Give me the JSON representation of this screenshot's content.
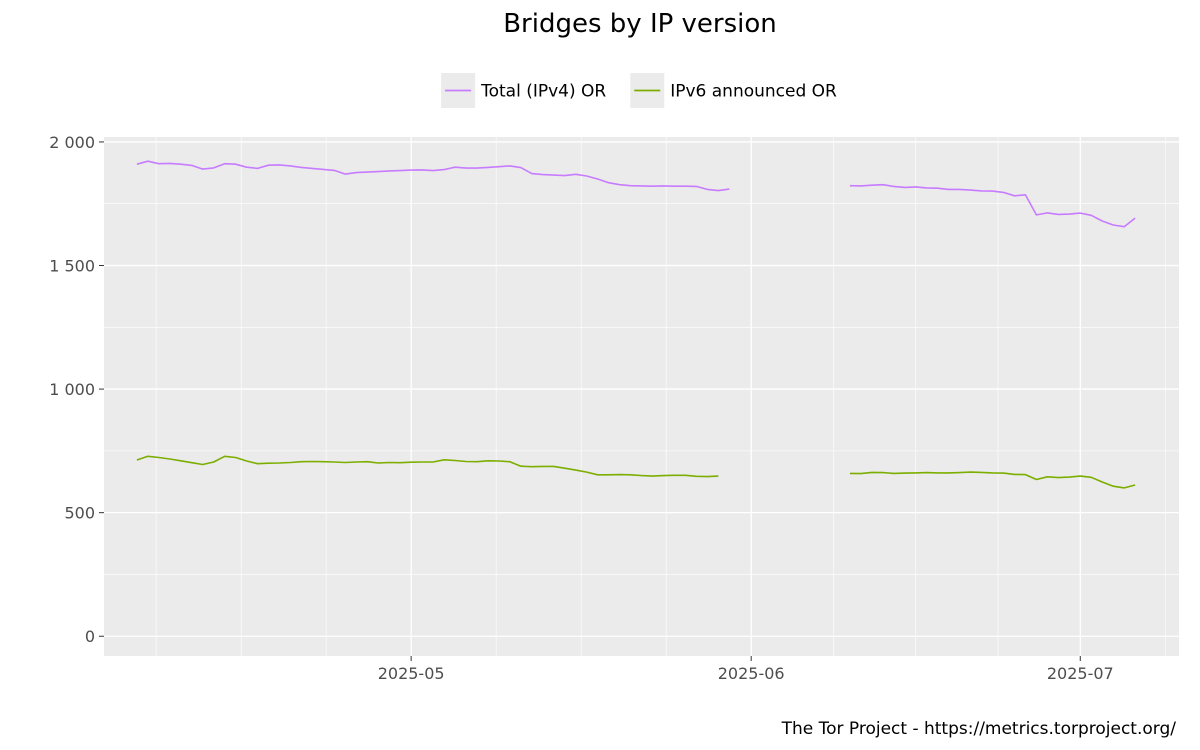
{
  "chart_data": {
    "type": "line",
    "title": "Bridges by IP version",
    "caption": "The Tor Project - https://metrics.torproject.org/",
    "xlabel": "",
    "ylabel": "",
    "ylim": [
      -80,
      2020
    ],
    "xlim": [
      "2025-04-03",
      "2025-07-10"
    ],
    "y_ticks": [
      0,
      500,
      1000,
      1500,
      2000
    ],
    "y_tick_labels": [
      "0",
      "500",
      "1 000",
      "1 500",
      "2 000"
    ],
    "x_ticks": [
      "2025-05-01",
      "2025-06-01",
      "2025-07-01"
    ],
    "x_tick_labels": [
      "2025-05",
      "2025-06",
      "2025-07"
    ],
    "grid": true,
    "legend_position": "top",
    "series": [
      {
        "name": "Total (IPv4) OR",
        "color": "#c77cff",
        "values": [
          {
            "x": "2025-04-06",
            "y": 1910
          },
          {
            "x": "2025-04-07",
            "y": 1922
          },
          {
            "x": "2025-04-08",
            "y": 1912
          },
          {
            "x": "2025-04-09",
            "y": 1913
          },
          {
            "x": "2025-04-10",
            "y": 1910
          },
          {
            "x": "2025-04-11",
            "y": 1905
          },
          {
            "x": "2025-04-12",
            "y": 1890
          },
          {
            "x": "2025-04-13",
            "y": 1895
          },
          {
            "x": "2025-04-14",
            "y": 1912
          },
          {
            "x": "2025-04-15",
            "y": 1910
          },
          {
            "x": "2025-04-16",
            "y": 1898
          },
          {
            "x": "2025-04-17",
            "y": 1893
          },
          {
            "x": "2025-04-18",
            "y": 1906
          },
          {
            "x": "2025-04-19",
            "y": 1907
          },
          {
            "x": "2025-04-20",
            "y": 1903
          },
          {
            "x": "2025-04-21",
            "y": 1897
          },
          {
            "x": "2025-04-22",
            "y": 1893
          },
          {
            "x": "2025-04-23",
            "y": 1889
          },
          {
            "x": "2025-04-24",
            "y": 1885
          },
          {
            "x": "2025-04-25",
            "y": 1870
          },
          {
            "x": "2025-04-26",
            "y": 1876
          },
          {
            "x": "2025-04-27",
            "y": 1878
          },
          {
            "x": "2025-04-28",
            "y": 1880
          },
          {
            "x": "2025-04-29",
            "y": 1883
          },
          {
            "x": "2025-04-30",
            "y": 1884
          },
          {
            "x": "2025-05-01",
            "y": 1886
          },
          {
            "x": "2025-05-02",
            "y": 1887
          },
          {
            "x": "2025-05-03",
            "y": 1884
          },
          {
            "x": "2025-05-04",
            "y": 1888
          },
          {
            "x": "2025-05-05",
            "y": 1898
          },
          {
            "x": "2025-05-06",
            "y": 1894
          },
          {
            "x": "2025-05-07",
            "y": 1894
          },
          {
            "x": "2025-05-08",
            "y": 1897
          },
          {
            "x": "2025-05-09",
            "y": 1900
          },
          {
            "x": "2025-05-10",
            "y": 1903
          },
          {
            "x": "2025-05-11",
            "y": 1896
          },
          {
            "x": "2025-05-12",
            "y": 1872
          },
          {
            "x": "2025-05-13",
            "y": 1868
          },
          {
            "x": "2025-05-14",
            "y": 1866
          },
          {
            "x": "2025-05-15",
            "y": 1864
          },
          {
            "x": "2025-05-16",
            "y": 1869
          },
          {
            "x": "2025-05-17",
            "y": 1862
          },
          {
            "x": "2025-05-18",
            "y": 1850
          },
          {
            "x": "2025-05-19",
            "y": 1835
          },
          {
            "x": "2025-05-20",
            "y": 1827
          },
          {
            "x": "2025-05-21",
            "y": 1823
          },
          {
            "x": "2025-05-22",
            "y": 1822
          },
          {
            "x": "2025-05-23",
            "y": 1821
          },
          {
            "x": "2025-05-24",
            "y": 1822
          },
          {
            "x": "2025-05-25",
            "y": 1821
          },
          {
            "x": "2025-05-26",
            "y": 1821
          },
          {
            "x": "2025-05-27",
            "y": 1820
          },
          {
            "x": "2025-05-28",
            "y": 1808
          },
          {
            "x": "2025-05-29",
            "y": 1803
          },
          {
            "x": "2025-05-30",
            "y": 1809
          },
          {
            "x": "2025-05-31",
            "y": null
          },
          {
            "x": "2025-06-10",
            "y": 1823
          },
          {
            "x": "2025-06-11",
            "y": 1822
          },
          {
            "x": "2025-06-12",
            "y": 1825
          },
          {
            "x": "2025-06-13",
            "y": 1827
          },
          {
            "x": "2025-06-14",
            "y": 1820
          },
          {
            "x": "2025-06-15",
            "y": 1816
          },
          {
            "x": "2025-06-16",
            "y": 1818
          },
          {
            "x": "2025-06-17",
            "y": 1814
          },
          {
            "x": "2025-06-18",
            "y": 1813
          },
          {
            "x": "2025-06-19",
            "y": 1808
          },
          {
            "x": "2025-06-20",
            "y": 1808
          },
          {
            "x": "2025-06-21",
            "y": 1805
          },
          {
            "x": "2025-06-22",
            "y": 1802
          },
          {
            "x": "2025-06-23",
            "y": 1801
          },
          {
            "x": "2025-06-24",
            "y": 1796
          },
          {
            "x": "2025-06-25",
            "y": 1782
          },
          {
            "x": "2025-06-26",
            "y": 1786
          },
          {
            "x": "2025-06-27",
            "y": 1705
          },
          {
            "x": "2025-06-28",
            "y": 1713
          },
          {
            "x": "2025-06-29",
            "y": 1707
          },
          {
            "x": "2025-06-30",
            "y": 1708
          },
          {
            "x": "2025-07-01",
            "y": 1712
          },
          {
            "x": "2025-07-02",
            "y": 1703
          },
          {
            "x": "2025-07-03",
            "y": 1680
          },
          {
            "x": "2025-07-04",
            "y": 1664
          },
          {
            "x": "2025-07-05",
            "y": 1657
          },
          {
            "x": "2025-07-06",
            "y": 1692
          }
        ]
      },
      {
        "name": "IPv6 announced OR",
        "color": "#7cae00",
        "values": [
          {
            "x": "2025-04-06",
            "y": 713
          },
          {
            "x": "2025-04-07",
            "y": 728
          },
          {
            "x": "2025-04-08",
            "y": 723
          },
          {
            "x": "2025-04-09",
            "y": 717
          },
          {
            "x": "2025-04-10",
            "y": 710
          },
          {
            "x": "2025-04-11",
            "y": 702
          },
          {
            "x": "2025-04-12",
            "y": 695
          },
          {
            "x": "2025-04-13",
            "y": 705
          },
          {
            "x": "2025-04-14",
            "y": 728
          },
          {
            "x": "2025-04-15",
            "y": 723
          },
          {
            "x": "2025-04-16",
            "y": 709
          },
          {
            "x": "2025-04-17",
            "y": 698
          },
          {
            "x": "2025-04-18",
            "y": 700
          },
          {
            "x": "2025-04-19",
            "y": 701
          },
          {
            "x": "2025-04-20",
            "y": 703
          },
          {
            "x": "2025-04-21",
            "y": 706
          },
          {
            "x": "2025-04-22",
            "y": 707
          },
          {
            "x": "2025-04-23",
            "y": 706
          },
          {
            "x": "2025-04-24",
            "y": 705
          },
          {
            "x": "2025-04-25",
            "y": 703
          },
          {
            "x": "2025-04-26",
            "y": 705
          },
          {
            "x": "2025-04-27",
            "y": 706
          },
          {
            "x": "2025-04-28",
            "y": 701
          },
          {
            "x": "2025-04-29",
            "y": 703
          },
          {
            "x": "2025-04-30",
            "y": 702
          },
          {
            "x": "2025-05-01",
            "y": 704
          },
          {
            "x": "2025-05-02",
            "y": 705
          },
          {
            "x": "2025-05-03",
            "y": 705
          },
          {
            "x": "2025-05-04",
            "y": 714
          },
          {
            "x": "2025-05-05",
            "y": 711
          },
          {
            "x": "2025-05-06",
            "y": 707
          },
          {
            "x": "2025-05-07",
            "y": 706
          },
          {
            "x": "2025-05-08",
            "y": 710
          },
          {
            "x": "2025-05-09",
            "y": 709
          },
          {
            "x": "2025-05-10",
            "y": 706
          },
          {
            "x": "2025-05-11",
            "y": 688
          },
          {
            "x": "2025-05-12",
            "y": 686
          },
          {
            "x": "2025-05-13",
            "y": 687
          },
          {
            "x": "2025-05-14",
            "y": 687
          },
          {
            "x": "2025-05-15",
            "y": 680
          },
          {
            "x": "2025-05-16",
            "y": 672
          },
          {
            "x": "2025-05-17",
            "y": 664
          },
          {
            "x": "2025-05-18",
            "y": 653
          },
          {
            "x": "2025-05-19",
            "y": 653
          },
          {
            "x": "2025-05-20",
            "y": 654
          },
          {
            "x": "2025-05-21",
            "y": 653
          },
          {
            "x": "2025-05-22",
            "y": 650
          },
          {
            "x": "2025-05-23",
            "y": 648
          },
          {
            "x": "2025-05-24",
            "y": 650
          },
          {
            "x": "2025-05-25",
            "y": 651
          },
          {
            "x": "2025-05-26",
            "y": 651
          },
          {
            "x": "2025-05-27",
            "y": 647
          },
          {
            "x": "2025-05-28",
            "y": 646
          },
          {
            "x": "2025-05-29",
            "y": 648
          },
          {
            "x": "2025-05-30",
            "y": null
          },
          {
            "x": "2025-06-10",
            "y": 659
          },
          {
            "x": "2025-06-11",
            "y": 658
          },
          {
            "x": "2025-06-12",
            "y": 663
          },
          {
            "x": "2025-06-13",
            "y": 662
          },
          {
            "x": "2025-06-14",
            "y": 659
          },
          {
            "x": "2025-06-15",
            "y": 660
          },
          {
            "x": "2025-06-16",
            "y": 661
          },
          {
            "x": "2025-06-17",
            "y": 662
          },
          {
            "x": "2025-06-18",
            "y": 661
          },
          {
            "x": "2025-06-19",
            "y": 661
          },
          {
            "x": "2025-06-20",
            "y": 662
          },
          {
            "x": "2025-06-21",
            "y": 664
          },
          {
            "x": "2025-06-22",
            "y": 663
          },
          {
            "x": "2025-06-23",
            "y": 661
          },
          {
            "x": "2025-06-24",
            "y": 660
          },
          {
            "x": "2025-06-25",
            "y": 655
          },
          {
            "x": "2025-06-26",
            "y": 654
          },
          {
            "x": "2025-06-27",
            "y": 634
          },
          {
            "x": "2025-06-28",
            "y": 645
          },
          {
            "x": "2025-06-29",
            "y": 642
          },
          {
            "x": "2025-06-30",
            "y": 644
          },
          {
            "x": "2025-07-01",
            "y": 648
          },
          {
            "x": "2025-07-02",
            "y": 643
          },
          {
            "x": "2025-07-03",
            "y": 624
          },
          {
            "x": "2025-07-04",
            "y": 607
          },
          {
            "x": "2025-07-05",
            "y": 600
          },
          {
            "x": "2025-07-06",
            "y": 612
          }
        ]
      }
    ]
  }
}
